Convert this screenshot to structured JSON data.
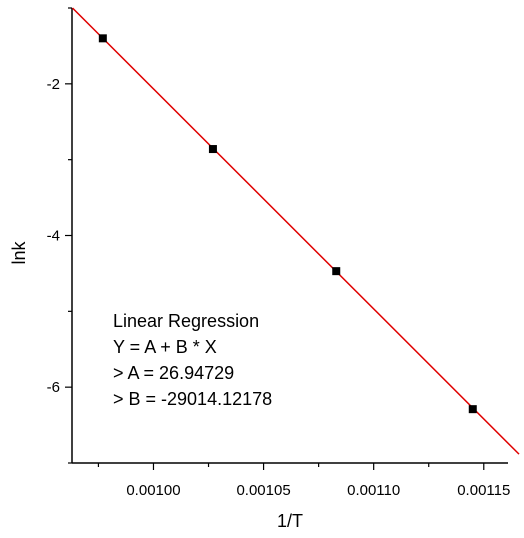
{
  "chart_data": {
    "type": "scatter",
    "xlabel": "1/T",
    "ylabel": "lnk",
    "xlim": [
      0.000963,
      0.001161
    ],
    "ylim": [
      -7.0,
      -1.0
    ],
    "x_ticks": [
      0.001,
      0.00105,
      0.0011,
      0.00115
    ],
    "x_tick_labels": [
      "0.00100",
      "0.00105",
      "0.00110",
      "0.00115"
    ],
    "y_ticks": [
      -2,
      -4,
      -6
    ],
    "y_tick_labels": [
      "-2",
      "-4",
      "-6"
    ],
    "series": [
      {
        "marker": "square",
        "color": "#000000",
        "x": [
          0.000977,
          0.001027,
          0.001083,
          0.001145
        ],
        "y": [
          -1.4,
          -2.86,
          -4.47,
          -6.29
        ]
      }
    ],
    "fit_line": {
      "color": "#e00000",
      "intercept": 26.94729,
      "slope": -29014.12178
    },
    "annotation_lines": [
      "Linear Regression",
      "Y = A + B * X",
      "> A = 26.94729",
      "> B = -29014.12178"
    ],
    "grid": false,
    "legend": "none"
  }
}
